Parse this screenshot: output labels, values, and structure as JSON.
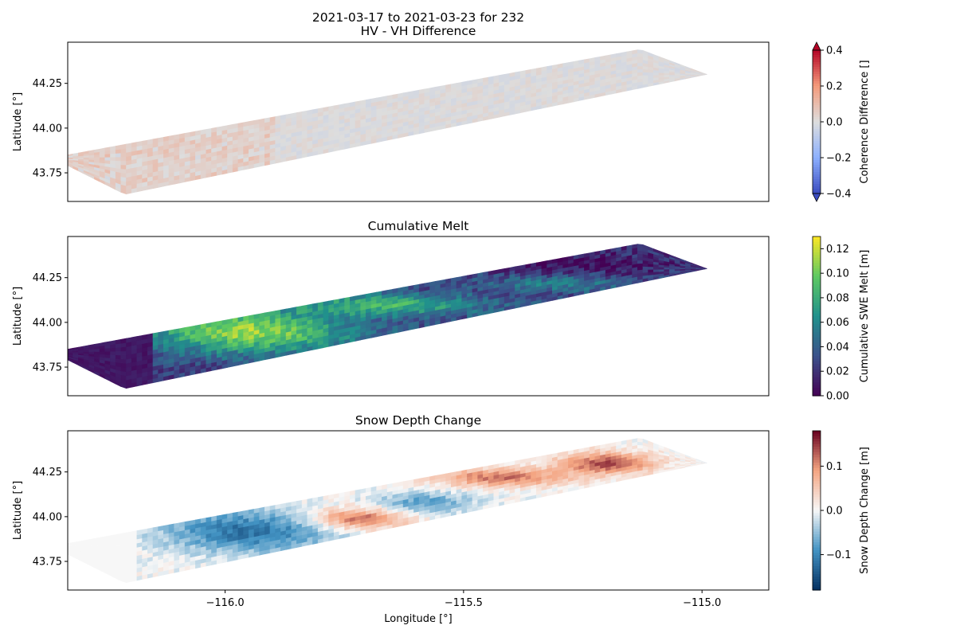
{
  "figure": {
    "title_line1": "2021-03-17 to 2021-03-23 for 232",
    "title_line2": "HV - VH Difference",
    "panel2_title": "Cumulative Melt",
    "panel3_title": "Snow Depth Change",
    "xlabel": "Longitude [°]",
    "ylabel": "Latitude [°]"
  },
  "chart_data": [
    {
      "type": "heatmap",
      "title": "HV - VH Difference",
      "ylabel": "Latitude [°]",
      "xlim": [
        -116.33,
        -114.86
      ],
      "ylim": [
        43.59,
        44.48
      ],
      "x_ticks": [
        -116.0,
        -115.5,
        -115.0
      ],
      "y_ticks": [
        43.75,
        44.0,
        44.25
      ],
      "y_tick_labels": [
        "43.75",
        "44.00",
        "44.25"
      ],
      "colorbar": {
        "label": "Coherence Difference []",
        "colormap": "coolwarm",
        "range": [
          -0.4,
          0.4
        ],
        "ticks": [
          -0.4,
          -0.2,
          0.0,
          0.2,
          0.4
        ],
        "tick_labels": [
          "−0.4",
          "−0.2",
          "0.0",
          "0.2",
          "0.4"
        ],
        "extend": "both",
        "colors": [
          "#3b4cc0",
          "#8db0fe",
          "#dddddd",
          "#f49a7b",
          "#b40426"
        ]
      },
      "field_summary": "Values mostly near 0.0 across the swath, with speckled positive values (~0.1) in the western part."
    },
    {
      "type": "heatmap",
      "title": "Cumulative Melt",
      "ylabel": "Latitude [°]",
      "xlim": [
        -116.33,
        -114.86
      ],
      "ylim": [
        43.59,
        44.48
      ],
      "x_ticks": [
        -116.0,
        -115.5,
        -115.0
      ],
      "y_ticks": [
        43.75,
        44.0,
        44.25
      ],
      "y_tick_labels": [
        "43.75",
        "44.00",
        "44.25"
      ],
      "colorbar": {
        "label": "Cumulative SWE Melt [m]",
        "colormap": "viridis",
        "range": [
          0.0,
          0.13
        ],
        "ticks": [
          0.0,
          0.02,
          0.04,
          0.06,
          0.08,
          0.1,
          0.12
        ],
        "tick_labels": [
          "0.00",
          "0.02",
          "0.04",
          "0.06",
          "0.08",
          "0.10",
          "0.12"
        ],
        "colors": [
          "#440154",
          "#3b528b",
          "#21918c",
          "#5ec962",
          "#fde725"
        ]
      },
      "field_summary": "Near 0.00 in the far west; high melt (0.08–0.12) along the middle-west section; low-to-moderate melt (0.01–0.04) in the eastern half."
    },
    {
      "type": "heatmap",
      "title": "Snow Depth Change",
      "xlabel": "Longitude [°]",
      "ylabel": "Latitude [°]",
      "xlim": [
        -116.33,
        -114.86
      ],
      "ylim": [
        43.59,
        44.48
      ],
      "x_ticks": [
        -116.0,
        -115.5,
        -115.0
      ],
      "x_tick_labels": [
        "−116.0",
        "−115.5",
        "−115.0"
      ],
      "y_ticks": [
        43.75,
        44.0,
        44.25
      ],
      "y_tick_labels": [
        "43.75",
        "44.00",
        "44.25"
      ],
      "colorbar": {
        "label": "Snow Depth Change [m]",
        "colormap": "RdBu_r",
        "range": [
          -0.18,
          0.18
        ],
        "ticks": [
          -0.1,
          0.0,
          0.1
        ],
        "tick_labels": [
          "−0.1",
          "0.0",
          "0.1"
        ],
        "colors": [
          "#053061",
          "#4393c3",
          "#f7f7f7",
          "#f4a582",
          "#67001f"
        ]
      },
      "field_summary": "Near 0 in the far west; negative change (−0.05 to −0.15) in the west-central section; positive change (+0.05 to +0.15) around -115.75 and in the eastern highlands."
    }
  ]
}
